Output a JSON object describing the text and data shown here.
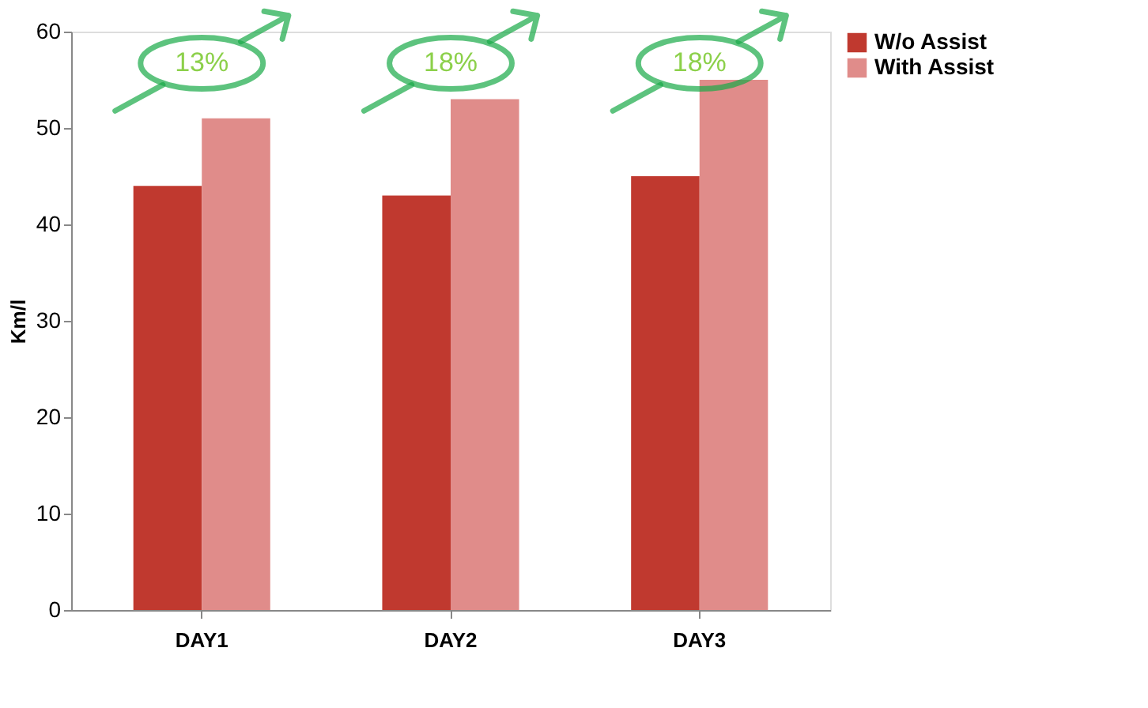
{
  "chart_data": {
    "type": "bar",
    "ylabel": "Km/l",
    "categories": [
      "DAY1",
      "DAY2",
      "DAY3"
    ],
    "series": [
      {
        "name": "W/o Assist",
        "color": "#c0392f",
        "values": [
          44,
          43,
          45
        ]
      },
      {
        "name": "With Assist",
        "color": "#e08c8a",
        "values": [
          51,
          53,
          55
        ]
      }
    ],
    "ylim": [
      0,
      60
    ],
    "yticks": [
      0,
      10,
      20,
      30,
      40,
      50,
      60
    ],
    "grid": false,
    "legend": "right",
    "annotations": [
      "13%",
      "18%",
      "18%"
    ]
  }
}
